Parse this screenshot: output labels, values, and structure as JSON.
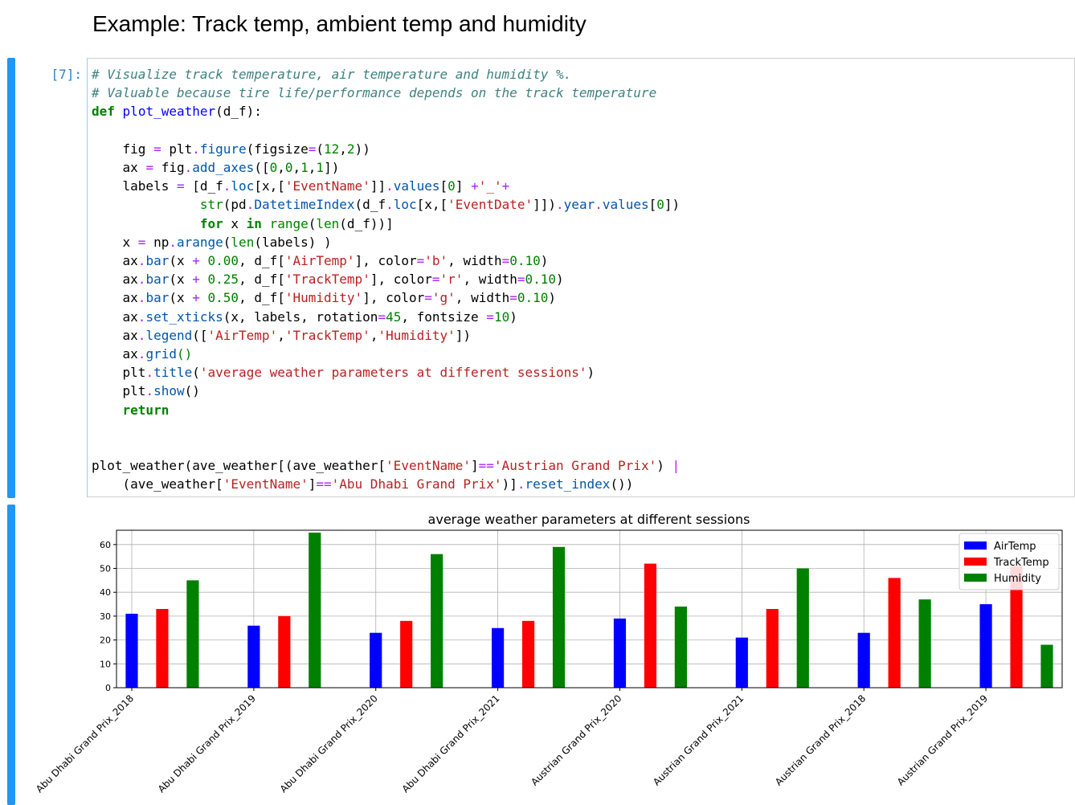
{
  "markdown": {
    "heading": "Example: Track temp, ambient temp and humidity"
  },
  "cell": {
    "prompt": "[7]:"
  },
  "chart_data": {
    "type": "bar",
    "title": "average weather parameters at different sessions",
    "xlabel": "",
    "ylabel": "",
    "ylim": [
      0,
      66
    ],
    "yticks": [
      0,
      10,
      20,
      30,
      40,
      50,
      60
    ],
    "grid": true,
    "legend_position": "top-right",
    "categories": [
      "Abu Dhabi Grand Prix_2018",
      "Abu Dhabi Grand Prix_2019",
      "Abu Dhabi Grand Prix_2020",
      "Abu Dhabi Grand Prix_2021",
      "Austrian Grand Prix_2020",
      "Austrian Grand Prix_2021",
      "Austrian Grand Prix_2018",
      "Austrian Grand Prix_2019"
    ],
    "series": [
      {
        "name": "AirTemp",
        "color": "#0000ff",
        "offset": 0.0,
        "values": [
          31,
          26,
          23,
          25,
          29,
          21,
          23,
          35
        ]
      },
      {
        "name": "TrackTemp",
        "color": "#ff0000",
        "offset": 0.25,
        "values": [
          33,
          30,
          28,
          28,
          52,
          33,
          46,
          51
        ]
      },
      {
        "name": "Humidity",
        "color": "#008000",
        "offset": 0.5,
        "values": [
          45,
          65,
          56,
          59,
          34,
          50,
          37,
          18
        ]
      }
    ]
  }
}
